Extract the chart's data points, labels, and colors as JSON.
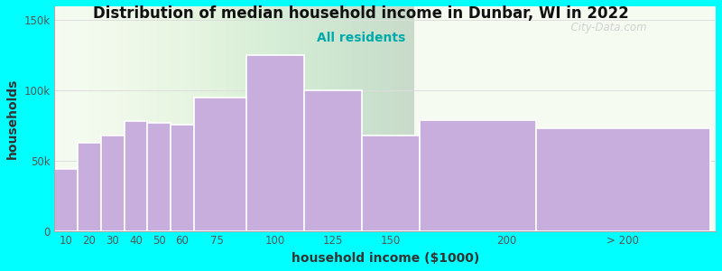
{
  "title": "Distribution of median household income in Dunbar, WI in 2022",
  "subtitle": "All residents",
  "xlabel": "household income ($1000)",
  "ylabel": "households",
  "bg_outer": "#00FFFF",
  "bar_color": "#c8aedd",
  "bar_edge_color": "#ffffff",
  "title_fontsize": 12,
  "subtitle_fontsize": 10,
  "subtitle_color": "#00aaaa",
  "bar_lefts": [
    5,
    15,
    25,
    35,
    45,
    55,
    65,
    87.5,
    112.5,
    137.5,
    162.5,
    212.5
  ],
  "bar_widths": [
    10,
    10,
    10,
    10,
    10,
    10,
    25,
    25,
    25,
    25,
    50,
    75
  ],
  "bar_heights": [
    44000,
    63000,
    68000,
    78000,
    77000,
    76000,
    95000,
    125000,
    100000,
    68000,
    79000,
    73000
  ],
  "ylim": [
    0,
    160000
  ],
  "yticks": [
    0,
    50000,
    100000,
    150000
  ],
  "ytick_labels": [
    "0",
    "50k",
    "100k",
    "150k"
  ],
  "xtick_positions": [
    10,
    20,
    30,
    40,
    50,
    60,
    75,
    100,
    125,
    150,
    200,
    250
  ],
  "xtick_labels": [
    "10",
    "20",
    "30",
    "40",
    "50",
    "60",
    "75",
    "100",
    "125",
    "150",
    "200",
    "> 200"
  ],
  "watermark": "  City-Data.com"
}
